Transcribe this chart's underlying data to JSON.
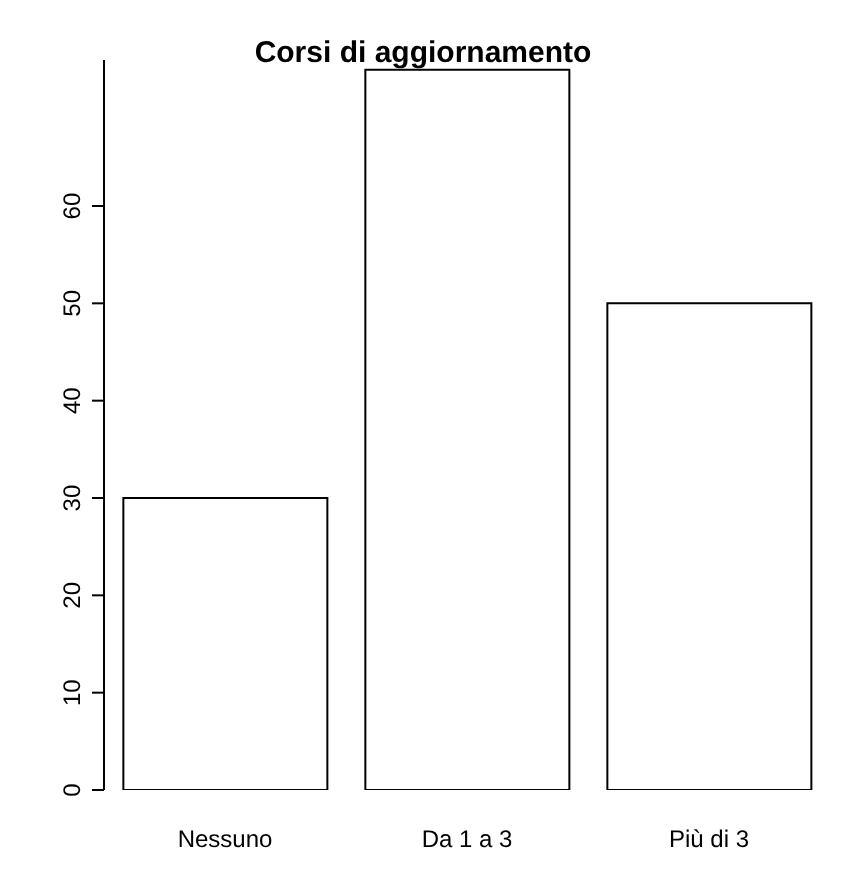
{
  "chart_data": {
    "type": "bar",
    "title": "Corsi di aggiornamento",
    "categories": [
      "Nessuno",
      "Da 1 a 3",
      "Più di 3"
    ],
    "values": [
      30,
      74,
      50
    ],
    "color": "#ffffff",
    "ylim": [
      0,
      75
    ],
    "yticks": [
      0,
      10,
      20,
      30,
      40,
      50,
      60
    ]
  }
}
